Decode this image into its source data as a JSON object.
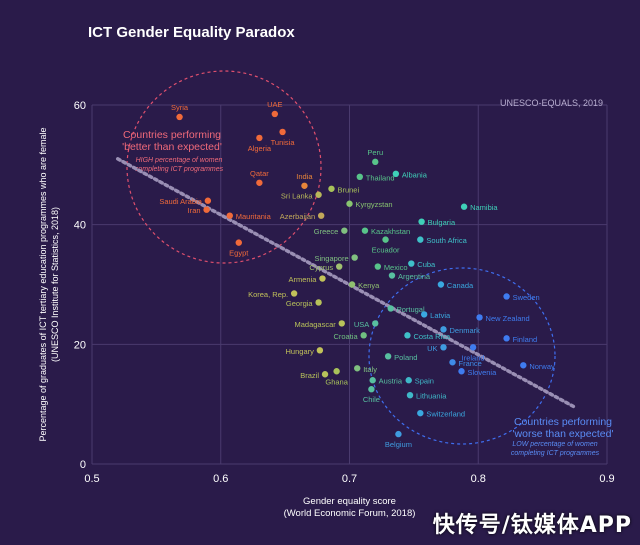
{
  "chart_data": {
    "type": "scatter",
    "title": "ICT Gender Equality Paradox",
    "source_note": "UNESCO-EQUALS, 2019",
    "xlabel": "Gender equality score",
    "xlabel_sub": "(World Economic Forum, 2018)",
    "ylabel": "Percentage of graduates of ICT tertiary education programmes who are female",
    "ylabel_sub": "(UNESCO Institute for Statistics, 2018)",
    "xlim": [
      0.5,
      0.9
    ],
    "ylim": [
      0,
      60
    ],
    "x_ticks": [
      "0.5",
      "0.6",
      "0.7",
      "0.8",
      "0.9"
    ],
    "y_ticks": [
      "0",
      "20",
      "40",
      "60"
    ],
    "grid": true,
    "colors": {
      "background": "#2a1b4a",
      "grid": "#4a3b6e",
      "better": "#f06a3a",
      "mid_yellow": "#c2c25a",
      "mid_green": "#58c48a",
      "teal": "#3fd0b8",
      "cyan": "#3aa8e0",
      "worse": "#3f7cf0",
      "trend": "#9a8fb4",
      "better_circle": "#e0506e",
      "worse_circle": "#3f6ef0"
    },
    "annotations": {
      "better_title": "Countries performing 'better than expected'",
      "better_sub": "HIGH percentage of women completing ICT programmes",
      "worse_title": "Countries performing 'worse than expected'",
      "worse_sub": "LOW percentage of women completing ICT programmes"
    },
    "trend_line": [
      [
        0.52,
        51
      ],
      [
        0.875,
        9.5
      ]
    ],
    "points": [
      {
        "label": "Syria",
        "x": 0.568,
        "y": 58,
        "color": "#f06a3a"
      },
      {
        "label": "UAE",
        "x": 0.642,
        "y": 58.5,
        "color": "#f06a3a"
      },
      {
        "label": "Algeria",
        "x": 0.63,
        "y": 54.5,
        "color": "#f06a3a"
      },
      {
        "label": "Tunisia",
        "x": 0.648,
        "y": 55.5,
        "color": "#f06a3a"
      },
      {
        "label": "Qatar",
        "x": 0.63,
        "y": 47,
        "color": "#f06a3a"
      },
      {
        "label": "India",
        "x": 0.665,
        "y": 46.5,
        "color": "#e8853a"
      },
      {
        "label": "Saudi Arabia",
        "x": 0.59,
        "y": 44,
        "color": "#f06a3a"
      },
      {
        "label": "Iran",
        "x": 0.589,
        "y": 42.5,
        "color": "#f06a3a"
      },
      {
        "label": "Mauritania",
        "x": 0.607,
        "y": 41.5,
        "color": "#f06a3a"
      },
      {
        "label": "Egypt",
        "x": 0.614,
        "y": 37,
        "color": "#f06a3a"
      },
      {
        "label": "Peru",
        "x": 0.72,
        "y": 50.5,
        "color": "#58c48a"
      },
      {
        "label": "Thailand",
        "x": 0.708,
        "y": 48,
        "color": "#58c48a"
      },
      {
        "label": "Albania",
        "x": 0.736,
        "y": 48.5,
        "color": "#3fd0b8"
      },
      {
        "label": "Brunei",
        "x": 0.686,
        "y": 46,
        "color": "#a8c25a"
      },
      {
        "label": "Sri Lanka",
        "x": 0.676,
        "y": 45,
        "color": "#b8b85a"
      },
      {
        "label": "Kyrgyzstan",
        "x": 0.7,
        "y": 43.5,
        "color": "#88c470"
      },
      {
        "label": "Azerbaijan",
        "x": 0.678,
        "y": 41.5,
        "color": "#c2a85a"
      },
      {
        "label": "Namibia",
        "x": 0.789,
        "y": 43,
        "color": "#3fd0b8"
      },
      {
        "label": "Bulgaria",
        "x": 0.756,
        "y": 40.5,
        "color": "#3fd0b8"
      },
      {
        "label": "Kazakhstan",
        "x": 0.712,
        "y": 39,
        "color": "#58c48a"
      },
      {
        "label": "Greece",
        "x": 0.696,
        "y": 39,
        "color": "#80c080"
      },
      {
        "label": "South Africa",
        "x": 0.755,
        "y": 37.5,
        "color": "#3fc0c8"
      },
      {
        "label": "Ecuador",
        "x": 0.728,
        "y": 37.5,
        "color": "#58c48a"
      },
      {
        "label": "Singapore",
        "x": 0.704,
        "y": 34.5,
        "color": "#80c080"
      },
      {
        "label": "Cyprus",
        "x": 0.692,
        "y": 33,
        "color": "#a0c070"
      },
      {
        "label": "Mexico",
        "x": 0.722,
        "y": 33,
        "color": "#58c48a"
      },
      {
        "label": "Cuba",
        "x": 0.748,
        "y": 33.5,
        "color": "#3fc0c8"
      },
      {
        "label": "Argentina",
        "x": 0.733,
        "y": 31.5,
        "color": "#58c0a0"
      },
      {
        "label": "Armenia",
        "x": 0.679,
        "y": 31,
        "color": "#c2c25a"
      },
      {
        "label": "Kenya",
        "x": 0.702,
        "y": 30,
        "color": "#90c070"
      },
      {
        "label": "Canada",
        "x": 0.771,
        "y": 30,
        "color": "#3aa8e0"
      },
      {
        "label": "Korea, Rep.",
        "x": 0.657,
        "y": 28.5,
        "color": "#c2c25a"
      },
      {
        "label": "Sweden",
        "x": 0.822,
        "y": 28,
        "color": "#3f7cf0"
      },
      {
        "label": "Georgia",
        "x": 0.676,
        "y": 27,
        "color": "#b8c25a"
      },
      {
        "label": "Portugal",
        "x": 0.732,
        "y": 26,
        "color": "#58c0a0"
      },
      {
        "label": "Latvia",
        "x": 0.758,
        "y": 25,
        "color": "#3aa8e0"
      },
      {
        "label": "New Zealand",
        "x": 0.801,
        "y": 24.5,
        "color": "#3f7cf0"
      },
      {
        "label": "Madagascar",
        "x": 0.694,
        "y": 23.5,
        "color": "#b8c25a"
      },
      {
        "label": "USA",
        "x": 0.72,
        "y": 23.5,
        "color": "#58c0a0"
      },
      {
        "label": "Denmark",
        "x": 0.773,
        "y": 22.5,
        "color": "#3f9ce0"
      },
      {
        "label": "Croatia",
        "x": 0.711,
        "y": 21.5,
        "color": "#70c080"
      },
      {
        "label": "Costa Rica",
        "x": 0.745,
        "y": 21.5,
        "color": "#3fc0c8"
      },
      {
        "label": "Finland",
        "x": 0.822,
        "y": 21,
        "color": "#3f7cf0"
      },
      {
        "label": "UK",
        "x": 0.773,
        "y": 19.5,
        "color": "#3f9ce0"
      },
      {
        "label": "Ireland",
        "x": 0.796,
        "y": 19.5,
        "color": "#3f7cf0"
      },
      {
        "label": "Hungary",
        "x": 0.677,
        "y": 19,
        "color": "#c2c25a"
      },
      {
        "label": "Poland",
        "x": 0.73,
        "y": 18,
        "color": "#58c0a0"
      },
      {
        "label": "France",
        "x": 0.78,
        "y": 17,
        "color": "#3f8ce8"
      },
      {
        "label": "Norway",
        "x": 0.835,
        "y": 16.5,
        "color": "#3f7cf0"
      },
      {
        "label": "Slovenia",
        "x": 0.787,
        "y": 15.5,
        "color": "#3f7cf0"
      },
      {
        "label": "Italy",
        "x": 0.706,
        "y": 16,
        "color": "#80c080"
      },
      {
        "label": "Brazil",
        "x": 0.681,
        "y": 15,
        "color": "#b8c25a"
      },
      {
        "label": "Ghana",
        "x": 0.69,
        "y": 15.5,
        "color": "#a8c25a"
      },
      {
        "label": "Austria",
        "x": 0.718,
        "y": 14,
        "color": "#58c0a0"
      },
      {
        "label": "Spain",
        "x": 0.746,
        "y": 14,
        "color": "#3fb8c8"
      },
      {
        "label": "Chile",
        "x": 0.717,
        "y": 12.5,
        "color": "#58c0a0"
      },
      {
        "label": "Lithuania",
        "x": 0.747,
        "y": 11.5,
        "color": "#3fb8c8"
      },
      {
        "label": "Switzerland",
        "x": 0.755,
        "y": 8.5,
        "color": "#3aa8e0"
      },
      {
        "label": "Belgium",
        "x": 0.738,
        "y": 5,
        "color": "#3f9ce0"
      }
    ]
  },
  "watermark": "快传号/钛媒体APP"
}
